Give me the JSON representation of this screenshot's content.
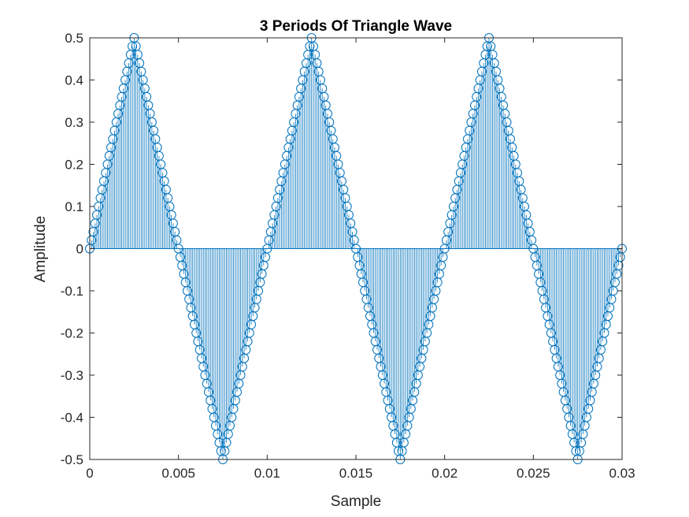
{
  "chart_data": {
    "type": "stem",
    "title": "3 Periods Of Triangle Wave",
    "xlabel": "Sample",
    "ylabel": "Amplitude",
    "xlim": [
      0,
      0.03
    ],
    "ylim": [
      -0.5,
      0.5
    ],
    "xticks": [
      "0",
      "0.005",
      "0.01",
      "0.015",
      "0.02",
      "0.025",
      "0.03"
    ],
    "yticks": [
      "0.5",
      "0.4",
      "0.3",
      "0.2",
      "0.1",
      "0",
      "-0.1",
      "-0.2",
      "-0.3",
      "-0.4",
      "-0.5"
    ],
    "grid": false,
    "series_color": "#0072BD",
    "series": [
      {
        "periods": 3,
        "period": 0.01,
        "sample_interval": 0.0001,
        "amplitude": 0.5,
        "sample_count": 301,
        "x_start": 0,
        "x_end": 0.03,
        "marker": "circle"
      }
    ]
  }
}
